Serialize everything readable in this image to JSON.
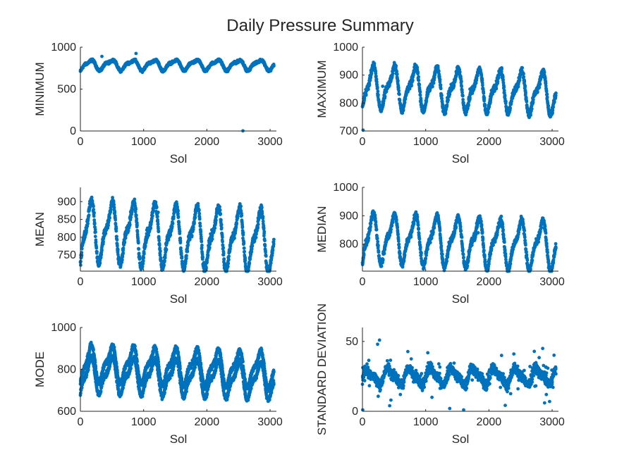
{
  "chart_data": {
    "type": "scatter",
    "title": "Daily Pressure Summary",
    "marker_color": "#0072BD",
    "axis_color": "#262626",
    "panels": [
      {
        "ylabel": "MINIMUM",
        "xlabel": "Sol",
        "xlim": [
          0,
          3100
        ],
        "ylim": [
          0,
          1000
        ],
        "xticks": [
          0,
          1000,
          2000,
          3000
        ],
        "yticks": [
          0,
          500,
          1000
        ],
        "trend": {
          "base": 790,
          "amp": 55,
          "annual_amp": 20,
          "drift": 0,
          "period": 335,
          "noise": 12,
          "curve": "plain"
        },
        "outliers": [
          [
            2570,
            2
          ],
          [
            880,
            925
          ],
          [
            340,
            890
          ]
        ]
      },
      {
        "ylabel": "MAXIMUM",
        "xlabel": "Sol",
        "xlim": [
          0,
          3100
        ],
        "ylim": [
          700,
          1000
        ],
        "xticks": [
          0,
          1000,
          2000,
          3000
        ],
        "yticks": [
          700,
          800,
          900,
          1000
        ],
        "trend": {
          "base": 860,
          "amp": 65,
          "annual_amp": 25,
          "drift": -0.008,
          "period": 335,
          "noise": 10,
          "curve": "double"
        },
        "outliers": [
          [
            10,
            703
          ],
          [
            1600,
            800
          ],
          [
            320,
            860
          ],
          [
            1700,
            850
          ]
        ]
      },
      {
        "ylabel": "MEAN",
        "xlabel": "Sol",
        "xlim": [
          0,
          3100
        ],
        "ylim": [
          705,
          940
        ],
        "xticks": [
          0,
          1000,
          2000,
          3000
        ],
        "yticks": [
          750,
          800,
          850,
          900
        ],
        "trend": {
          "base": 820,
          "amp": 75,
          "annual_amp": 28,
          "drift": -0.01,
          "period": 335,
          "noise": 10,
          "curve": "double"
        },
        "outliers": [
          [
            2180,
            890
          ],
          [
            1230,
            870
          ]
        ]
      },
      {
        "ylabel": "MEDIAN",
        "xlabel": "Sol",
        "xlim": [
          0,
          3100
        ],
        "ylim": [
          705,
          1000
        ],
        "xticks": [
          0,
          1000,
          2000,
          3000
        ],
        "yticks": [
          800,
          900,
          1000
        ],
        "trend": {
          "base": 825,
          "amp": 75,
          "annual_amp": 28,
          "drift": -0.01,
          "period": 335,
          "noise": 10,
          "curve": "double"
        },
        "outliers": [
          [
            2250,
            770
          ],
          [
            1830,
            840
          ]
        ]
      },
      {
        "ylabel": "MODE",
        "xlabel": "Sol",
        "xlim": [
          0,
          3100
        ],
        "ylim": [
          600,
          1000
        ],
        "xticks": [
          0,
          1000,
          2000,
          3000
        ],
        "yticks": [
          600,
          800,
          1000
        ],
        "trend": {
          "base": 830,
          "amp": 75,
          "annual_amp": 28,
          "drift": -0.01,
          "period": 335,
          "noise": 10,
          "curve": "double",
          "dual_offset": -55
        },
        "outliers": []
      },
      {
        "ylabel": "STANDARD DEVIATION",
        "xlabel": "Sol",
        "xlim": [
          0,
          3100
        ],
        "ylim": [
          0,
          60
        ],
        "xticks": [
          0,
          1000,
          2000,
          3000
        ],
        "yticks": [
          0,
          50
        ],
        "trend": {
          "base": 25,
          "amp": 5,
          "annual_amp": 2,
          "drift": 0,
          "period": 335,
          "noise": 3,
          "curve": "spiky"
        },
        "outliers": [
          [
            5,
            1
          ],
          [
            270,
            51
          ],
          [
            240,
            48
          ],
          [
            450,
            8
          ],
          [
            430,
            4
          ],
          [
            1380,
            2
          ],
          [
            1600,
            1
          ],
          [
            2880,
            6
          ],
          [
            2960,
            7
          ],
          [
            600,
            12
          ],
          [
            1100,
            10
          ],
          [
            2200,
            40
          ],
          [
            2850,
            45
          ]
        ]
      }
    ]
  }
}
